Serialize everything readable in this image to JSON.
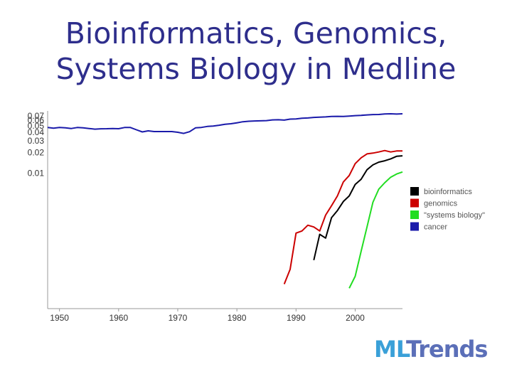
{
  "title": {
    "line1": "Bioinformatics, Genomics,",
    "line2": "Systems Biology in Medline"
  },
  "logo": {
    "part1": "ML",
    "part2": "Trends"
  },
  "chart_data": {
    "type": "line",
    "title": "",
    "xlabel": "",
    "ylabel": "",
    "xlim": [
      1948,
      2008
    ],
    "x_ticks": [
      "1950",
      "1960",
      "1970",
      "1980",
      "1990",
      "2000"
    ],
    "y_scale": "log",
    "ylim": [
      0.0001,
      0.075
    ],
    "y_ticks": [
      "0.07",
      "0.06",
      "0.05",
      "0.04",
      "0.03",
      "0.02",
      "0.01"
    ],
    "grid": false,
    "legend_position": "right",
    "series": [
      {
        "name": "bioinformatics",
        "color": "#000000",
        "x": [
          1993,
          1994,
          1995,
          1996,
          1997,
          1998,
          1999,
          2000,
          2001,
          2002,
          2003,
          2004,
          2005,
          2006,
          2007,
          2008
        ],
        "y": [
          0.00052,
          0.00125,
          0.0011,
          0.0022,
          0.0028,
          0.0038,
          0.0046,
          0.0068,
          0.0081,
          0.0112,
          0.0132,
          0.0145,
          0.0152,
          0.0162,
          0.0177,
          0.018
        ]
      },
      {
        "name": "genomics",
        "color": "#cc0000",
        "x": [
          1988,
          1989,
          1990,
          1991,
          1992,
          1993,
          1994,
          1995,
          1996,
          1997,
          1998,
          1999,
          2000,
          2001,
          2002,
          2003,
          2004,
          2005,
          2006,
          2007,
          2008
        ],
        "y": [
          0.00023,
          0.00038,
          0.0013,
          0.0014,
          0.0017,
          0.0016,
          0.0014,
          0.0024,
          0.0033,
          0.0046,
          0.0074,
          0.0092,
          0.0138,
          0.0168,
          0.0192,
          0.0197,
          0.0205,
          0.0215,
          0.0205,
          0.0212,
          0.0212
        ]
      },
      {
        "name": "\"systems biology\"",
        "color": "#22dd22",
        "x": [
          1999,
          2000,
          2001,
          2002,
          2003,
          2004,
          2005,
          2006,
          2007,
          2008
        ],
        "y": [
          0.0002,
          0.0003,
          0.0007,
          0.0016,
          0.0037,
          0.0058,
          0.0072,
          0.0087,
          0.0097,
          0.0104
        ]
      },
      {
        "name": "cancer",
        "color": "#1a1aaa",
        "x": [
          1948,
          1949,
          1950,
          1951,
          1952,
          1953,
          1954,
          1955,
          1956,
          1957,
          1958,
          1959,
          1960,
          1961,
          1962,
          1963,
          1964,
          1965,
          1966,
          1967,
          1968,
          1969,
          1970,
          1971,
          1972,
          1973,
          1974,
          1975,
          1976,
          1977,
          1978,
          1979,
          1980,
          1981,
          1982,
          1983,
          1984,
          1985,
          1986,
          1987,
          1988,
          1989,
          1990,
          1991,
          1992,
          1993,
          1994,
          1995,
          1996,
          1997,
          1998,
          1999,
          2000,
          2001,
          2002,
          2003,
          2004,
          2005,
          2006,
          2007,
          2008
        ],
        "y": [
          0.047,
          0.046,
          0.047,
          0.0465,
          0.0455,
          0.047,
          0.0465,
          0.0455,
          0.0445,
          0.045,
          0.0452,
          0.0455,
          0.0452,
          0.047,
          0.047,
          0.0435,
          0.0405,
          0.042,
          0.041,
          0.041,
          0.041,
          0.041,
          0.04,
          0.0385,
          0.0408,
          0.0465,
          0.0472,
          0.0488,
          0.0495,
          0.0508,
          0.0525,
          0.0535,
          0.0552,
          0.0572,
          0.0582,
          0.0588,
          0.0591,
          0.0595,
          0.061,
          0.0612,
          0.0605,
          0.0625,
          0.063,
          0.0645,
          0.065,
          0.0663,
          0.0668,
          0.0675,
          0.0684,
          0.0688,
          0.0684,
          0.0694,
          0.0705,
          0.0712,
          0.0722,
          0.073,
          0.0732,
          0.0745,
          0.075,
          0.0742,
          0.075
        ]
      }
    ]
  }
}
